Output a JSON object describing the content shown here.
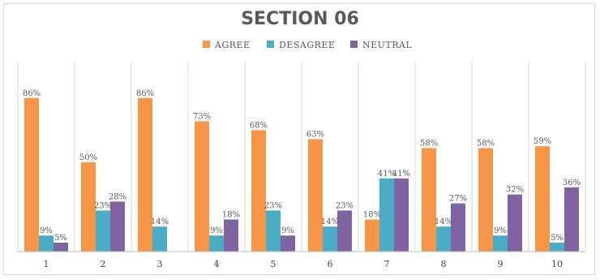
{
  "chart_data": {
    "type": "bar",
    "title": "SECTION 06",
    "xlabel": "",
    "ylabel": "",
    "ylim": [
      0,
      100
    ],
    "grid": "vertical-category-separators",
    "legend_position": "top",
    "categories": [
      "1",
      "2",
      "3",
      "4",
      "5",
      "6",
      "7",
      "8",
      "9",
      "10"
    ],
    "series": [
      {
        "name": "AGREE",
        "color": "#f79646",
        "values": [
          86,
          50,
          86,
          73,
          68,
          63,
          18,
          58,
          58,
          59
        ],
        "labels": [
          "86%",
          "50%",
          "86%",
          "73%",
          "68%",
          "63%",
          "18%",
          "58%",
          "58%",
          "59%"
        ]
      },
      {
        "name": "DESAGREE",
        "color": "#4bacc6",
        "values": [
          9,
          23,
          14,
          9,
          23,
          14,
          41,
          14,
          9,
          5
        ],
        "labels": [
          "9%",
          "23%",
          "14%",
          "9%",
          "23%",
          "14%",
          "41%",
          "14%",
          "9%",
          "5%"
        ]
      },
      {
        "name": "NEUTRAL",
        "color": "#8064a2",
        "values": [
          5,
          28,
          null,
          18,
          9,
          23,
          41,
          27,
          32,
          36
        ],
        "labels": [
          "5%",
          "28%",
          "",
          "18%",
          "9%",
          "23%",
          "41%",
          "27%",
          "32%",
          "36%"
        ]
      }
    ]
  }
}
